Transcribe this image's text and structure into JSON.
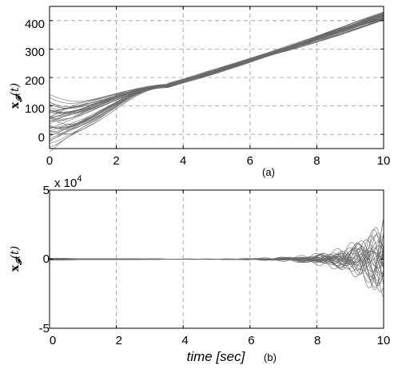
{
  "chart_data": [
    {
      "id": "a",
      "type": "line",
      "panel_label": "(a)",
      "ylabel": "x_F(t)",
      "ylabel_main": "x",
      "ylabel_sub": "𝓕",
      "ylabel_tail": "(t)",
      "xlabel": "",
      "xlim": [
        0,
        10
      ],
      "ylim": [
        -50,
        450
      ],
      "xticks": [
        "0",
        "2",
        "4",
        "6",
        "8",
        "10"
      ],
      "yticks": [
        "0",
        "100",
        "200",
        "300",
        "400"
      ],
      "grid": true,
      "series_count": 40,
      "trajectory_description": "many gray trajectories starting between about -30 and 110 at t=0, converging near 170 at t≈3.5, then rising together to about 400–430 at t=10",
      "start_range": [
        -30,
        110
      ],
      "convergence_point": [
        3.5,
        170
      ],
      "end_range": [
        400,
        430
      ]
    },
    {
      "id": "b",
      "type": "line",
      "panel_label": "(b)",
      "ylabel": "x_F(t)",
      "ylabel_main": "x",
      "ylabel_sub": "𝓕",
      "ylabel_tail": "(t)",
      "xlabel": "time [sec]",
      "exponent_label": "x 10^4",
      "exponent_base": "x 10",
      "exponent_power": "4",
      "xlim": [
        0,
        10
      ],
      "ylim": [
        -5,
        5
      ],
      "y_scale_factor": 10000,
      "xticks": [
        "0",
        "2",
        "4",
        "6",
        "8",
        "10"
      ],
      "yticks": [
        "-5",
        "0",
        "5"
      ],
      "grid": true,
      "series_count": 30,
      "trajectory_description": "gray oscillating trajectories near zero until about t=6, with oscillation amplitude growing to roughly ±3 (×10^4) by t=10",
      "max_amplitude_at_end": 3.3
    }
  ]
}
